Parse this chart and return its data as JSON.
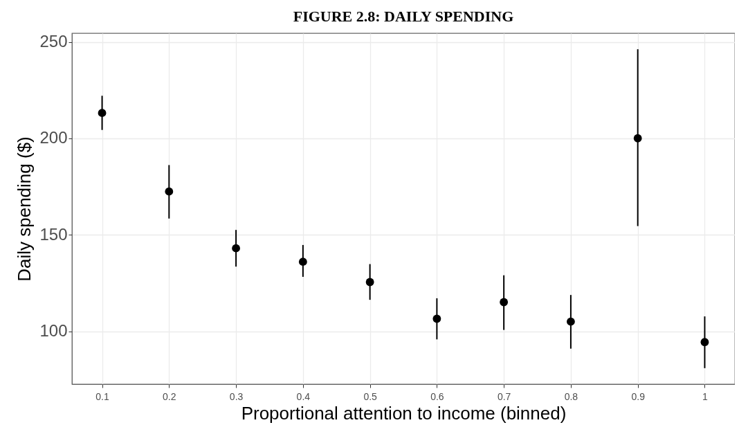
{
  "chart_data": {
    "type": "scatter",
    "title": "FIGURE 2.8: DAILY SPENDING",
    "xlabel": "Proportional attention to income (binned)",
    "ylabel": "Daily spending ($)",
    "x": [
      0.1,
      0.2,
      0.3,
      0.4,
      0.5,
      0.6,
      0.7,
      0.8,
      0.9,
      1
    ],
    "series": [
      {
        "color": "#000000",
        "values": [
          213.2,
          172.5,
          143.1,
          136.1,
          125.6,
          106.6,
          115.2,
          105.1,
          200.1,
          94.5
        ],
        "errors": [
          [
            204.4,
            222.1
          ],
          [
            158.5,
            186.2
          ],
          [
            133.6,
            152.6
          ],
          [
            128.3,
            144.8
          ],
          [
            116.4,
            134.9
          ],
          [
            95.9,
            117.2
          ],
          [
            100.8,
            129.1
          ],
          [
            91.1,
            118.9
          ],
          [
            154.6,
            246.2
          ],
          [
            81.0,
            107.8
          ]
        ]
      }
    ],
    "xlim": [
      0.055,
      1.045
    ],
    "ylim": [
      72.7,
      254.5
    ],
    "xticks": [
      {
        "value": 0.1,
        "label": "0.1"
      },
      {
        "value": 0.2,
        "label": "0.2"
      },
      {
        "value": 0.3,
        "label": "0.3"
      },
      {
        "value": 0.4,
        "label": "0.4"
      },
      {
        "value": 0.5,
        "label": "0.5"
      },
      {
        "value": 0.6,
        "label": "0.6"
      },
      {
        "value": 0.7,
        "label": "0.7"
      },
      {
        "value": 0.8,
        "label": "0.8"
      },
      {
        "value": 0.9,
        "label": "0.9"
      },
      1
    ],
    "yticks": [
      100,
      150,
      200,
      250
    ],
    "grid": true,
    "marker": "circle"
  }
}
